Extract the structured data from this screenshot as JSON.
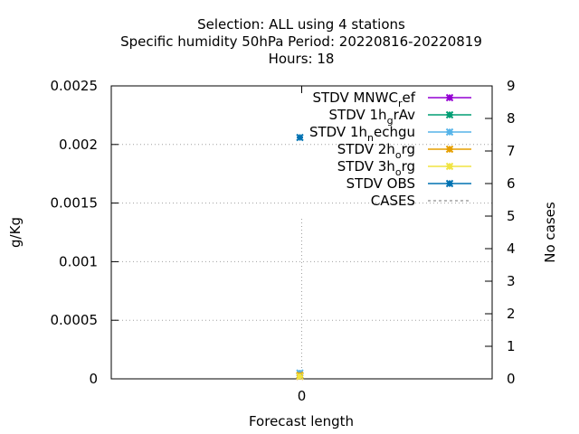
{
  "chart_data": {
    "type": "line",
    "title_lines": [
      "Selection: ALL using     4 stations",
      "Specific humidity 50hPa   Period: 20220816-20220819",
      "Hours:  18"
    ],
    "xlabel": "Forecast length",
    "ylabel": "g/Kg",
    "y2label": "No cases",
    "x_ticks": [
      "0"
    ],
    "y_ticks": [
      "0",
      "0.0005",
      "0.001",
      "0.0015",
      "0.002",
      "0.0025"
    ],
    "y2_ticks": [
      "0",
      "1",
      "2",
      "3",
      "4",
      "5",
      "6",
      "7",
      "8",
      "9"
    ],
    "xlim": [
      -1,
      1
    ],
    "ylim": [
      0,
      0.0025
    ],
    "y2lim": [
      0,
      9
    ],
    "grid": true,
    "legend_position": "top-right",
    "series": [
      {
        "name": "STDV MNWC_ref",
        "legend_parts": [
          "STDV MNWC",
          "r",
          "ef"
        ],
        "color": "#9400d3",
        "axis": "y",
        "x": [
          0
        ],
        "y": [
          2e-05
        ]
      },
      {
        "name": "STDV 1h_grAv",
        "legend_parts": [
          "STDV 1h",
          "g",
          "rAv"
        ],
        "color": "#009e73",
        "axis": "y",
        "x": [
          0
        ],
        "y": [
          3e-05
        ]
      },
      {
        "name": "STDV 1h_nechgu",
        "legend_parts": [
          "STDV 1h",
          "n",
          "echgu"
        ],
        "color": "#56b4e9",
        "axis": "y",
        "x": [
          0
        ],
        "y": [
          5e-05
        ]
      },
      {
        "name": "STDV 2h_org",
        "legend_parts": [
          "STDV 2h",
          "o",
          "rg"
        ],
        "color": "#e69f00",
        "axis": "y",
        "x": [
          0
        ],
        "y": [
          3e-05
        ]
      },
      {
        "name": "STDV 3h_org",
        "legend_parts": [
          "STDV 3h",
          "o",
          "rg"
        ],
        "color": "#f0e442",
        "axis": "y",
        "x": [
          0
        ],
        "y": [
          2e-05
        ]
      },
      {
        "name": "STDV OBS",
        "legend_parts": [
          "STDV OBS",
          "",
          ""
        ],
        "color": "#0072b2",
        "axis": "y",
        "x": [
          0
        ],
        "y": [
          0.00206
        ]
      },
      {
        "name": "CASES",
        "legend_parts": [
          "CASES",
          "",
          ""
        ],
        "color": "#a0a0a0",
        "axis": "y2",
        "dashed": true,
        "x": [
          0
        ],
        "y": [
          5
        ]
      }
    ]
  }
}
